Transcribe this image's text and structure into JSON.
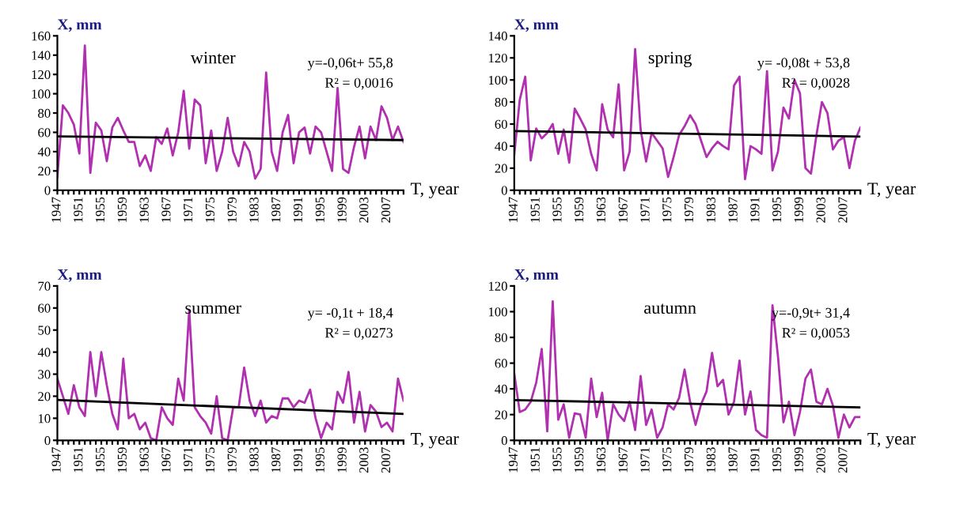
{
  "chart_data": [
    {
      "type": "line",
      "title": "winter",
      "xlabel": "T, year",
      "ylabel": "X, mm",
      "annotations": [
        "y=-0,06t+ 55,8",
        "R² = 0,0016"
      ],
      "xlim": [
        1947,
        2010
      ],
      "ylim": [
        0,
        160
      ],
      "yticks": [
        0,
        20,
        40,
        60,
        80,
        100,
        120,
        140,
        160
      ],
      "xticks": [
        1947,
        {
          "value": 1948,
          "label": null
        },
        {
          "value": 1949,
          "label": null
        },
        {
          "value": 1950,
          "label": null
        },
        1951,
        {
          "value": 1952,
          "label": null
        },
        {
          "value": 1953,
          "label": null
        },
        {
          "value": 1954,
          "label": null
        },
        1955,
        {
          "value": 1956,
          "label": null
        },
        {
          "value": 1957,
          "label": null
        },
        {
          "value": 1958,
          "label": null
        },
        1959,
        {
          "value": 1960,
          "label": null
        },
        {
          "value": 1961,
          "label": null
        },
        {
          "value": 1962,
          "label": null
        },
        1963,
        {
          "value": 1964,
          "label": null
        },
        {
          "value": 1965,
          "label": null
        },
        {
          "value": 1966,
          "label": null
        },
        1967,
        {
          "value": 1968,
          "label": null
        },
        {
          "value": 1969,
          "label": null
        },
        {
          "value": 1970,
          "label": null
        },
        1971,
        {
          "value": 1972,
          "label": null
        },
        {
          "value": 1973,
          "label": null
        },
        {
          "value": 1974,
          "label": null
        },
        1975,
        {
          "value": 1976,
          "label": null
        },
        {
          "value": 1977,
          "label": null
        },
        {
          "value": 1978,
          "label": null
        },
        1979,
        {
          "value": 1980,
          "label": null
        },
        {
          "value": 1981,
          "label": null
        },
        {
          "value": 1982,
          "label": null
        },
        1983,
        {
          "value": 1984,
          "label": null
        },
        {
          "value": 1985,
          "label": null
        },
        {
          "value": 1986,
          "label": null
        },
        1987,
        {
          "value": 1988,
          "label": null
        },
        {
          "value": 1989,
          "label": null
        },
        {
          "value": 1990,
          "label": null
        },
        1991,
        {
          "value": 1992,
          "label": null
        },
        {
          "value": 1993,
          "label": null
        },
        {
          "value": 1994,
          "label": null
        },
        1995,
        {
          "value": 1996,
          "label": null
        },
        {
          "value": 1997,
          "label": null
        },
        {
          "value": 1998,
          "label": null
        },
        1999,
        {
          "value": 2000,
          "label": null
        },
        {
          "value": 2001,
          "label": null
        },
        {
          "value": 2002,
          "label": null
        },
        2003,
        {
          "value": 2004,
          "label": null
        },
        {
          "value": 2005,
          "label": null
        },
        {
          "value": 2006,
          "label": null
        },
        2007,
        {
          "value": 2008,
          "label": null
        },
        {
          "value": 2009,
          "label": null
        },
        {
          "value": 2010,
          "label": null
        }
      ],
      "grid": false,
      "legend": false,
      "marker": "none",
      "series": [
        {
          "color": "#b030b0",
          "x": [
            1947,
            1948,
            1949,
            1950,
            1951,
            1952,
            1953,
            1954,
            1955,
            1956,
            1957,
            1958,
            1959,
            1960,
            1961,
            1962,
            1963,
            1964,
            1965,
            1966,
            1967,
            1968,
            1969,
            1970,
            1971,
            1972,
            1973,
            1974,
            1975,
            1976,
            1977,
            1978,
            1979,
            1980,
            1981,
            1982,
            1983,
            1984,
            1985,
            1986,
            1987,
            1988,
            1989,
            1990,
            1991,
            1992,
            1993,
            1994,
            1995,
            1996,
            1997,
            1998,
            1999,
            2000,
            2001,
            2002,
            2003,
            2004,
            2005,
            2006,
            2007,
            2008,
            2009,
            2010
          ],
          "values": [
            14,
            88,
            80,
            68,
            38,
            150,
            18,
            70,
            62,
            30,
            65,
            75,
            62,
            50,
            50,
            25,
            36,
            20,
            55,
            48,
            64,
            36,
            60,
            103,
            43,
            94,
            88,
            28,
            62,
            20,
            40,
            75,
            40,
            25,
            50,
            40,
            12,
            22,
            122,
            40,
            20,
            60,
            78,
            28,
            60,
            65,
            38,
            66,
            60,
            40,
            20,
            106,
            22,
            18,
            45,
            66,
            33,
            66,
            52,
            87,
            75,
            52,
            66,
            50
          ]
        },
        {
          "color": "#000000",
          "x": [
            1947,
            2010
          ],
          "values": [
            55.7,
            52.0
          ]
        }
      ]
    },
    {
      "type": "line",
      "title": "spring",
      "xlabel": "T, year",
      "ylabel": "X, mm",
      "annotations": [
        "y= -0,08t + 53,8",
        "R² = 0,0028"
      ],
      "xlim": [
        1947,
        2010
      ],
      "ylim": [
        0,
        140
      ],
      "yticks": [
        0,
        20,
        40,
        60,
        80,
        100,
        120,
        140
      ],
      "xticks": [
        1947,
        {
          "value": 1948,
          "label": null
        },
        {
          "value": 1949,
          "label": null
        },
        {
          "value": 1950,
          "label": null
        },
        1951,
        {
          "value": 1952,
          "label": null
        },
        {
          "value": 1953,
          "label": null
        },
        {
          "value": 1954,
          "label": null
        },
        1955,
        {
          "value": 1956,
          "label": null
        },
        {
          "value": 1957,
          "label": null
        },
        {
          "value": 1958,
          "label": null
        },
        1959,
        {
          "value": 1960,
          "label": null
        },
        {
          "value": 1961,
          "label": null
        },
        {
          "value": 1962,
          "label": null
        },
        1963,
        {
          "value": 1964,
          "label": null
        },
        {
          "value": 1965,
          "label": null
        },
        {
          "value": 1966,
          "label": null
        },
        1967,
        {
          "value": 1968,
          "label": null
        },
        {
          "value": 1969,
          "label": null
        },
        {
          "value": 1970,
          "label": null
        },
        1971,
        {
          "value": 1972,
          "label": null
        },
        {
          "value": 1973,
          "label": null
        },
        {
          "value": 1974,
          "label": null
        },
        1975,
        {
          "value": 1976,
          "label": null
        },
        {
          "value": 1977,
          "label": null
        },
        {
          "value": 1978,
          "label": null
        },
        1979,
        {
          "value": 1980,
          "label": null
        },
        {
          "value": 1981,
          "label": null
        },
        {
          "value": 1982,
          "label": null
        },
        1983,
        {
          "value": 1984,
          "label": null
        },
        {
          "value": 1985,
          "label": null
        },
        {
          "value": 1986,
          "label": null
        },
        1987,
        {
          "value": 1988,
          "label": null
        },
        {
          "value": 1989,
          "label": null
        },
        {
          "value": 1990,
          "label": null
        },
        1991,
        {
          "value": 1992,
          "label": null
        },
        {
          "value": 1993,
          "label": null
        },
        {
          "value": 1994,
          "label": null
        },
        1995,
        {
          "value": 1996,
          "label": null
        },
        {
          "value": 1997,
          "label": null
        },
        {
          "value": 1998,
          "label": null
        },
        1999,
        {
          "value": 2000,
          "label": null
        },
        {
          "value": 2001,
          "label": null
        },
        {
          "value": 2002,
          "label": null
        },
        2003,
        {
          "value": 2004,
          "label": null
        },
        {
          "value": 2005,
          "label": null
        },
        {
          "value": 2006,
          "label": null
        },
        2007,
        {
          "value": 2008,
          "label": null
        },
        {
          "value": 2009,
          "label": null
        },
        {
          "value": 2010,
          "label": null
        }
      ],
      "grid": false,
      "legend": false,
      "marker": "none",
      "series": [
        {
          "color": "#b030b0",
          "x": [
            1947,
            1948,
            1949,
            1950,
            1951,
            1952,
            1953,
            1954,
            1955,
            1956,
            1957,
            1958,
            1959,
            1960,
            1961,
            1962,
            1963,
            1964,
            1965,
            1966,
            1967,
            1968,
            1969,
            1970,
            1971,
            1972,
            1973,
            1974,
            1975,
            1976,
            1977,
            1978,
            1979,
            1980,
            1981,
            1982,
            1983,
            1984,
            1985,
            1986,
            1987,
            1988,
            1989,
            1990,
            1991,
            1992,
            1993,
            1994,
            1995,
            1996,
            1997,
            1998,
            1999,
            2000,
            2001,
            2002,
            2003,
            2004,
            2005,
            2006,
            2007,
            2008,
            2009,
            2010
          ],
          "values": [
            32,
            82,
            103,
            27,
            56,
            47,
            52,
            60,
            33,
            55,
            25,
            74,
            65,
            55,
            33,
            18,
            78,
            55,
            48,
            96,
            18,
            35,
            128,
            55,
            26,
            52,
            45,
            38,
            12,
            30,
            50,
            58,
            68,
            60,
            45,
            30,
            38,
            44,
            40,
            37,
            95,
            103,
            10,
            40,
            37,
            33,
            108,
            18,
            35,
            75,
            65,
            100,
            88,
            20,
            15,
            50,
            80,
            70,
            37,
            45,
            48,
            20,
            45,
            57
          ]
        },
        {
          "color": "#000000",
          "x": [
            1947,
            2010
          ],
          "values": [
            53.7,
            48.7
          ]
        }
      ]
    },
    {
      "type": "line",
      "title": "summer",
      "xlabel": "T, year",
      "ylabel": "X, mm",
      "annotations": [
        "y= -0,1t + 18,4",
        "R² = 0,0273"
      ],
      "xlim": [
        1947,
        2010
      ],
      "ylim": [
        0,
        70
      ],
      "yticks": [
        0,
        10,
        20,
        30,
        40,
        50,
        60,
        70
      ],
      "xticks": [
        1947,
        {
          "value": 1948,
          "label": null
        },
        {
          "value": 1949,
          "label": null
        },
        {
          "value": 1950,
          "label": null
        },
        1951,
        {
          "value": 1952,
          "label": null
        },
        {
          "value": 1953,
          "label": null
        },
        {
          "value": 1954,
          "label": null
        },
        1955,
        {
          "value": 1956,
          "label": null
        },
        {
          "value": 1957,
          "label": null
        },
        {
          "value": 1958,
          "label": null
        },
        1959,
        {
          "value": 1960,
          "label": null
        },
        {
          "value": 1961,
          "label": null
        },
        {
          "value": 1962,
          "label": null
        },
        1963,
        {
          "value": 1964,
          "label": null
        },
        {
          "value": 1965,
          "label": null
        },
        {
          "value": 1966,
          "label": null
        },
        1967,
        {
          "value": 1968,
          "label": null
        },
        {
          "value": 1969,
          "label": null
        },
        {
          "value": 1970,
          "label": null
        },
        1971,
        {
          "value": 1972,
          "label": null
        },
        {
          "value": 1973,
          "label": null
        },
        {
          "value": 1974,
          "label": null
        },
        1975,
        {
          "value": 1976,
          "label": null
        },
        {
          "value": 1977,
          "label": null
        },
        {
          "value": 1978,
          "label": null
        },
        1979,
        {
          "value": 1980,
          "label": null
        },
        {
          "value": 1981,
          "label": null
        },
        {
          "value": 1982,
          "label": null
        },
        1983,
        {
          "value": 1984,
          "label": null
        },
        {
          "value": 1985,
          "label": null
        },
        {
          "value": 1986,
          "label": null
        },
        1987,
        {
          "value": 1988,
          "label": null
        },
        {
          "value": 1989,
          "label": null
        },
        {
          "value": 1990,
          "label": null
        },
        1991,
        {
          "value": 1992,
          "label": null
        },
        {
          "value": 1993,
          "label": null
        },
        {
          "value": 1994,
          "label": null
        },
        1995,
        {
          "value": 1996,
          "label": null
        },
        {
          "value": 1997,
          "label": null
        },
        {
          "value": 1998,
          "label": null
        },
        1999,
        {
          "value": 2000,
          "label": null
        },
        {
          "value": 2001,
          "label": null
        },
        {
          "value": 2002,
          "label": null
        },
        2003,
        {
          "value": 2004,
          "label": null
        },
        {
          "value": 2005,
          "label": null
        },
        {
          "value": 2006,
          "label": null
        },
        2007,
        {
          "value": 2008,
          "label": null
        },
        {
          "value": 2009,
          "label": null
        },
        {
          "value": 2010,
          "label": null
        }
      ],
      "grid": false,
      "legend": false,
      "marker": "none",
      "series": [
        {
          "color": "#b030b0",
          "x": [
            1947,
            1948,
            1949,
            1950,
            1951,
            1952,
            1953,
            1954,
            1955,
            1956,
            1957,
            1958,
            1959,
            1960,
            1961,
            1962,
            1963,
            1964,
            1965,
            1966,
            1967,
            1968,
            1969,
            1970,
            1971,
            1972,
            1973,
            1974,
            1975,
            1976,
            1977,
            1978,
            1979,
            1980,
            1981,
            1982,
            1983,
            1984,
            1985,
            1986,
            1987,
            1988,
            1989,
            1990,
            1991,
            1992,
            1993,
            1994,
            1995,
            1996,
            1997,
            1998,
            1999,
            2000,
            2001,
            2002,
            2003,
            2004,
            2005,
            2006,
            2007,
            2008,
            2009,
            2010
          ],
          "values": [
            28,
            20,
            12,
            25,
            15,
            11,
            40,
            20,
            40,
            25,
            12,
            5,
            37,
            10,
            12,
            5,
            8,
            1,
            0,
            15,
            10,
            7,
            28,
            18,
            59,
            15,
            11,
            8,
            3,
            20,
            1,
            0,
            15,
            15,
            33,
            18,
            11,
            18,
            8,
            11,
            10,
            19,
            19,
            15,
            18,
            17,
            23,
            10,
            1,
            8,
            5,
            22,
            17,
            31,
            8,
            22,
            4,
            16,
            13,
            6,
            8,
            4,
            28,
            18
          ]
        },
        {
          "color": "#000000",
          "x": [
            1947,
            2010
          ],
          "values": [
            18.3,
            12.0
          ]
        }
      ]
    },
    {
      "type": "line",
      "title": "autumn",
      "xlabel": "T, year",
      "ylabel": "X, mm",
      "annotations": [
        "y=-0,9t+ 31,4",
        "R² = 0,0053"
      ],
      "xlim": [
        1947,
        2010
      ],
      "ylim": [
        0,
        120
      ],
      "yticks": [
        0,
        20,
        40,
        60,
        80,
        100,
        120
      ],
      "xticks": [
        1947,
        {
          "value": 1948,
          "label": null
        },
        {
          "value": 1949,
          "label": null
        },
        {
          "value": 1950,
          "label": null
        },
        1951,
        {
          "value": 1952,
          "label": null
        },
        {
          "value": 1953,
          "label": null
        },
        {
          "value": 1954,
          "label": null
        },
        1955,
        {
          "value": 1956,
          "label": null
        },
        {
          "value": 1957,
          "label": null
        },
        {
          "value": 1958,
          "label": null
        },
        1959,
        {
          "value": 1960,
          "label": null
        },
        {
          "value": 1961,
          "label": null
        },
        {
          "value": 1962,
          "label": null
        },
        1963,
        {
          "value": 1964,
          "label": null
        },
        {
          "value": 1965,
          "label": null
        },
        {
          "value": 1966,
          "label": null
        },
        1967,
        {
          "value": 1968,
          "label": null
        },
        {
          "value": 1969,
          "label": null
        },
        {
          "value": 1970,
          "label": null
        },
        1971,
        {
          "value": 1972,
          "label": null
        },
        {
          "value": 1973,
          "label": null
        },
        {
          "value": 1974,
          "label": null
        },
        1975,
        {
          "value": 1976,
          "label": null
        },
        {
          "value": 1977,
          "label": null
        },
        {
          "value": 1978,
          "label": null
        },
        1979,
        {
          "value": 1980,
          "label": null
        },
        {
          "value": 1981,
          "label": null
        },
        {
          "value": 1982,
          "label": null
        },
        1983,
        {
          "value": 1984,
          "label": null
        },
        {
          "value": 1985,
          "label": null
        },
        {
          "value": 1986,
          "label": null
        },
        1987,
        {
          "value": 1988,
          "label": null
        },
        {
          "value": 1989,
          "label": null
        },
        {
          "value": 1990,
          "label": null
        },
        1991,
        {
          "value": 1992,
          "label": null
        },
        {
          "value": 1993,
          "label": null
        },
        {
          "value": 1994,
          "label": null
        },
        1995,
        {
          "value": 1996,
          "label": null
        },
        {
          "value": 1997,
          "label": null
        },
        {
          "value": 1998,
          "label": null
        },
        1999,
        {
          "value": 2000,
          "label": null
        },
        {
          "value": 2001,
          "label": null
        },
        {
          "value": 2002,
          "label": null
        },
        2003,
        {
          "value": 2004,
          "label": null
        },
        {
          "value": 2005,
          "label": null
        },
        {
          "value": 2006,
          "label": null
        },
        2007,
        {
          "value": 2008,
          "label": null
        },
        {
          "value": 2009,
          "label": null
        },
        {
          "value": 2010,
          "label": null
        }
      ],
      "grid": false,
      "legend": false,
      "marker": "none",
      "series": [
        {
          "color": "#b030b0",
          "x": [
            1947,
            1948,
            1949,
            1950,
            1951,
            1952,
            1953,
            1954,
            1955,
            1956,
            1957,
            1958,
            1959,
            1960,
            1961,
            1962,
            1963,
            1964,
            1965,
            1966,
            1967,
            1968,
            1969,
            1970,
            1971,
            1972,
            1973,
            1974,
            1975,
            1976,
            1977,
            1978,
            1979,
            1980,
            1981,
            1982,
            1983,
            1984,
            1985,
            1986,
            1987,
            1988,
            1989,
            1990,
            1991,
            1992,
            1993,
            1994,
            1995,
            1996,
            1997,
            1998,
            1999,
            2000,
            2001,
            2002,
            2003,
            2004,
            2005,
            2006,
            2007,
            2008,
            2009,
            2010
          ],
          "values": [
            52,
            22,
            24,
            30,
            45,
            71,
            7,
            108,
            16,
            28,
            2,
            21,
            20,
            2,
            48,
            18,
            37,
            0,
            28,
            20,
            15,
            30,
            8,
            50,
            12,
            24,
            2,
            10,
            28,
            24,
            33,
            55,
            30,
            12,
            28,
            38,
            68,
            42,
            47,
            20,
            30,
            62,
            20,
            38,
            8,
            4,
            2,
            105,
            65,
            14,
            30,
            4,
            22,
            48,
            55,
            30,
            28,
            40,
            27,
            2,
            20,
            10,
            18,
            18
          ]
        },
        {
          "color": "#000000",
          "x": [
            1947,
            2010
          ],
          "values": [
            31.3,
            25.6
          ]
        }
      ]
    }
  ]
}
